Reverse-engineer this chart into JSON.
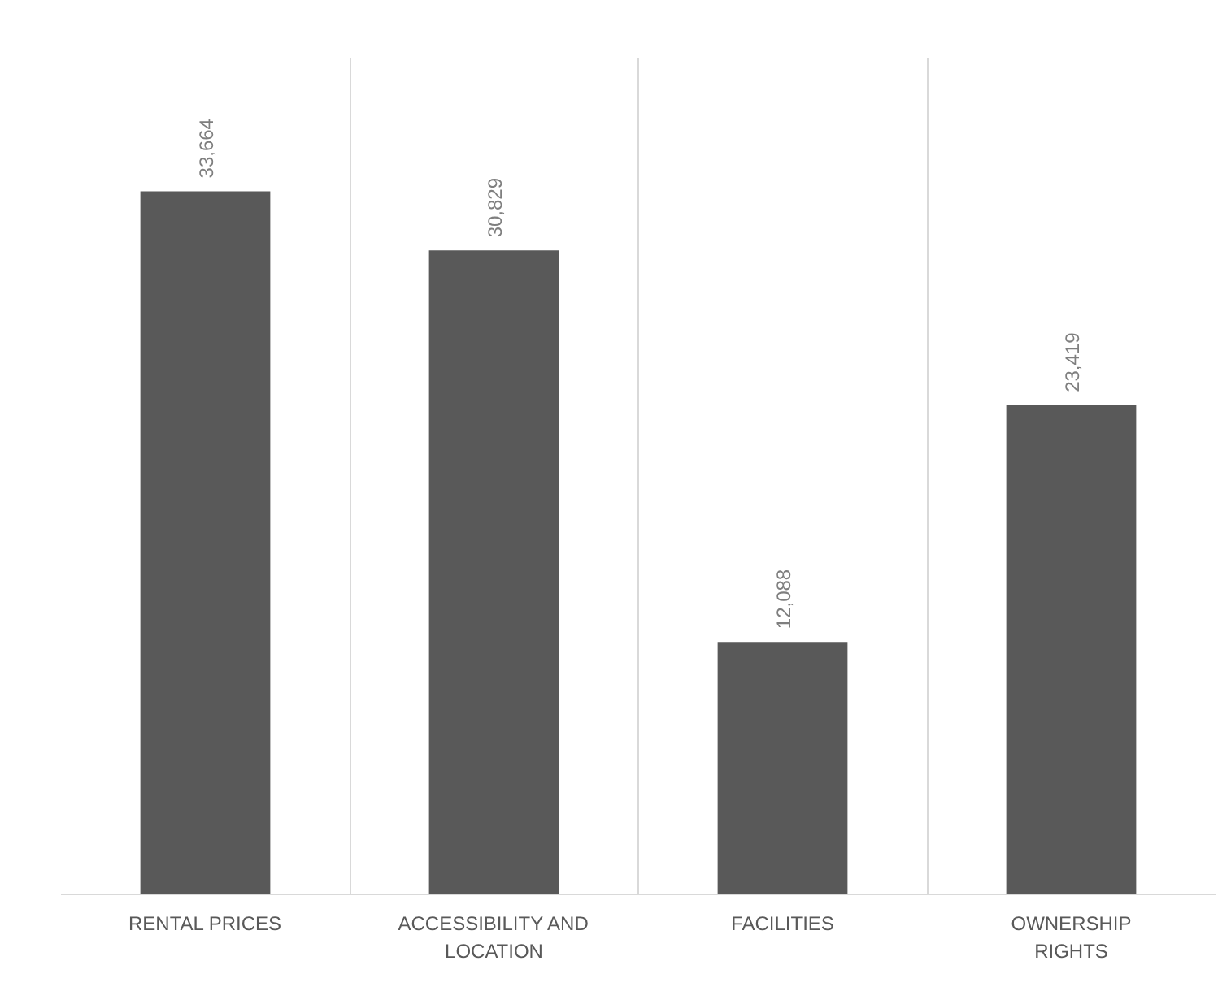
{
  "chart_data": {
    "type": "bar",
    "categories": [
      "RENTAL PRICES",
      "ACCESSIBILITY AND\nLOCATION",
      "FACILITIES",
      "OWNERSHIP\nRIGHTS"
    ],
    "values": [
      33664,
      30829,
      12088,
      23419
    ],
    "color": "#595959",
    "value_labels": [
      "33,664",
      "30,829",
      "12,088",
      "23,419"
    ],
    "grid": "x",
    "tick_labels": "x"
  }
}
